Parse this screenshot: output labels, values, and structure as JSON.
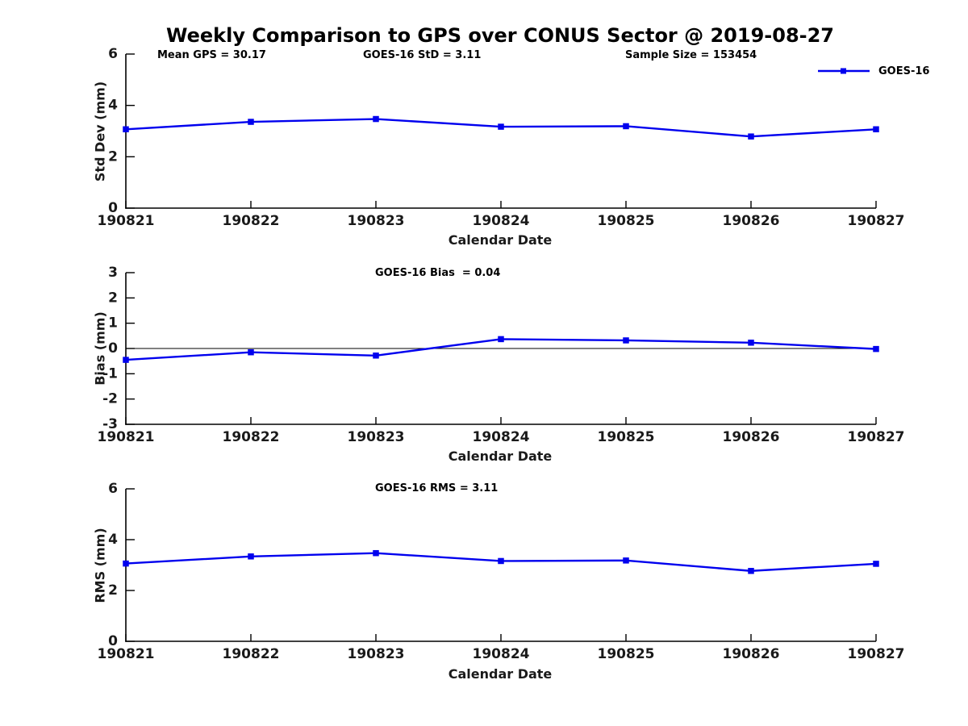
{
  "page_title": "Weekly Comparison to GPS over CONUS Sector @ 2019-08-27",
  "header_annotations": {
    "mean_gps": "Mean GPS = 30.17",
    "std": "GOES-16 StD = 3.11",
    "sample_size": "Sample Size = 153454"
  },
  "legend": {
    "label": "GOES-16",
    "position": "top-right"
  },
  "colors": {
    "series": "#0000EE",
    "axis": "#000000",
    "tick_label": "#1a1a1a",
    "zero_line": "#000000"
  },
  "chart_data": [
    {
      "type": "line",
      "title": "",
      "categories": [
        "190821",
        "190822",
        "190823",
        "190824",
        "190825",
        "190826",
        "190827"
      ],
      "series": [
        {
          "name": "GOES-16",
          "marker": "square",
          "values": [
            3.07,
            3.36,
            3.47,
            3.17,
            3.19,
            2.79,
            3.07
          ]
        }
      ],
      "xlabel": "Calendar Date",
      "ylabel": "Std Dev (mm)",
      "ylim": [
        0,
        6
      ],
      "yticks": [
        0,
        2,
        4,
        6
      ],
      "grid": false,
      "zero_line": false,
      "legend_position": "top-right"
    },
    {
      "type": "line",
      "title": "GOES-16 Bias  = 0.04",
      "categories": [
        "190821",
        "190822",
        "190823",
        "190824",
        "190825",
        "190826",
        "190827"
      ],
      "series": [
        {
          "name": "GOES-16",
          "marker": "square",
          "values": [
            -0.45,
            -0.15,
            -0.28,
            0.37,
            0.32,
            0.23,
            -0.02
          ]
        }
      ],
      "xlabel": "Calendar Date",
      "ylabel": "Bias (mm)",
      "ylim": [
        -3,
        3
      ],
      "yticks": [
        -3,
        -2,
        -1,
        0,
        1,
        2,
        3
      ],
      "grid": false,
      "zero_line": true
    },
    {
      "type": "line",
      "title": "GOES-16 RMS = 3.11",
      "categories": [
        "190821",
        "190822",
        "190823",
        "190824",
        "190825",
        "190826",
        "190827"
      ],
      "series": [
        {
          "name": "GOES-16",
          "marker": "square",
          "values": [
            3.06,
            3.34,
            3.47,
            3.16,
            3.18,
            2.77,
            3.05
          ]
        }
      ],
      "xlabel": "Calendar Date",
      "ylabel": "RMS (mm)",
      "ylim": [
        0,
        6
      ],
      "yticks": [
        0,
        2,
        4,
        6
      ],
      "grid": false,
      "zero_line": false
    }
  ]
}
